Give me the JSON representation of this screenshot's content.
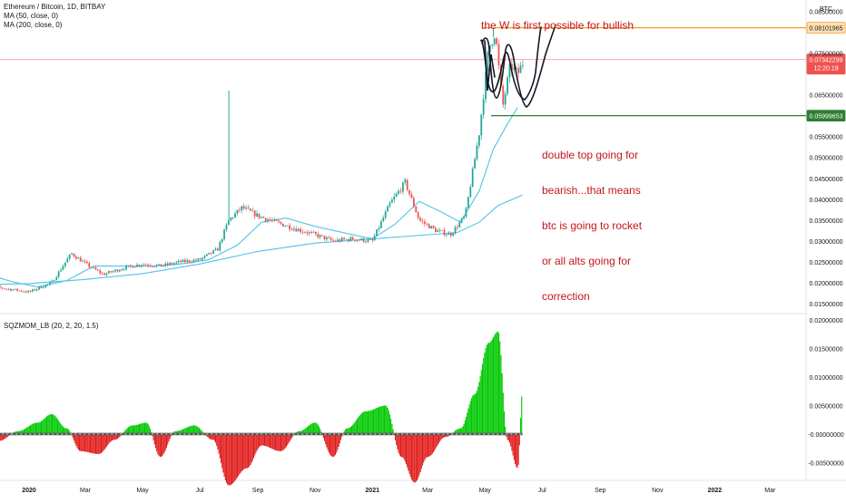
{
  "header": {
    "title": "Ethereum / Bitcoin, 1D, BITBAY",
    "indicators": [
      "MA (50, close, 0)",
      "MA (200, close, 0)"
    ],
    "currency": "BTC"
  },
  "annotations": {
    "top": "the W is first possible for bullish",
    "middle": [
      "double top going for",
      "bearish...that means",
      "btc is going to rocket",
      "or all alts going for",
      "correction"
    ]
  },
  "price_tags": {
    "resistance": "0.08101965",
    "current": "0.07342299",
    "countdown": "12:20:19",
    "support": "0.05999653"
  },
  "oscillator": {
    "title": "SQZMOM_LB (20, 2, 20, 1.5)"
  },
  "colors": {
    "up_candle": "#26a69a",
    "down_candle": "#ef5350",
    "ma50": "#4fc3e8",
    "ma200": "#4fc3e8",
    "resistance_line": "#f59d1c",
    "support_line": "#2e7d32",
    "current_line": "#f19ca0",
    "hist_pos": "#00c800",
    "hist_neg": "#e01b1b",
    "annotation": "#c4161c"
  },
  "chart_data": [
    {
      "type": "candlestick",
      "title": "Ethereum / Bitcoin, 1D, BITBAY",
      "xlabel": "",
      "ylabel": "BTC",
      "ylim": [
        0.0135,
        0.0855
      ],
      "y_ticks": [
        "0.08500000",
        "0.07500000",
        "0.06500000",
        "0.05500000",
        "0.05000000",
        "0.04500000",
        "0.04000000",
        "0.03500000",
        "0.03000000",
        "0.02500000",
        "0.02000000",
        "0.01500000"
      ],
      "y_tick_values": [
        0.085,
        0.075,
        0.065,
        0.055,
        0.05,
        0.045,
        0.04,
        0.035,
        0.03,
        0.025,
        0.02,
        0.015
      ],
      "x_ticks": [
        "2020",
        "Mar",
        "May",
        "Jul",
        "Sep",
        "Nov",
        "2021",
        "Mar",
        "May",
        "Jul",
        "Sep",
        "Nov",
        "2022",
        "Mar"
      ],
      "x_tick_dates": [
        "2020-01-01",
        "2020-03-01",
        "2020-05-01",
        "2020-07-01",
        "2020-09-01",
        "2020-11-01",
        "2021-01-01",
        "2021-03-01",
        "2021-05-01",
        "2021-07-01",
        "2021-09-01",
        "2021-11-01",
        "2022-01-01",
        "2022-03-01"
      ],
      "close_series": {
        "dates": [
          "2019-11-10",
          "2019-12-01",
          "2020-01-01",
          "2020-01-25",
          "2020-02-15",
          "2020-03-05",
          "2020-03-20",
          "2020-04-10",
          "2020-05-01",
          "2020-05-20",
          "2020-06-10",
          "2020-07-01",
          "2020-07-20",
          "2020-08-01",
          "2020-08-15",
          "2020-09-01",
          "2020-09-20",
          "2020-10-10",
          "2020-11-01",
          "2020-11-20",
          "2020-12-10",
          "2021-01-01",
          "2021-01-20",
          "2021-02-05",
          "2021-02-20",
          "2021-03-10",
          "2021-03-25",
          "2021-04-10",
          "2021-04-25",
          "2021-05-05",
          "2021-05-12",
          "2021-05-20",
          "2021-05-28",
          "2021-06-05",
          "2021-06-12"
        ],
        "values": [
          0.0205,
          0.0188,
          0.0178,
          0.02,
          0.027,
          0.024,
          0.022,
          0.0235,
          0.0245,
          0.024,
          0.025,
          0.0255,
          0.028,
          0.035,
          0.038,
          0.036,
          0.0345,
          0.033,
          0.0315,
          0.03,
          0.0305,
          0.03,
          0.039,
          0.044,
          0.035,
          0.0325,
          0.0315,
          0.036,
          0.056,
          0.076,
          0.08,
          0.062,
          0.072,
          0.07,
          0.0734
        ]
      },
      "wick_spikes": [
        {
          "date": "2020-08-01",
          "high": 0.066
        },
        {
          "date": "2021-05-10",
          "high": 0.081
        }
      ],
      "series": [
        {
          "name": "MA (50, close, 0)",
          "dates": [
            "2019-11-10",
            "2019-12-15",
            "2020-01-10",
            "2020-02-10",
            "2020-03-10",
            "2020-04-10",
            "2020-05-10",
            "2020-06-10",
            "2020-07-10",
            "2020-08-10",
            "2020-09-05",
            "2020-10-01",
            "2020-11-01",
            "2020-12-01",
            "2021-01-01",
            "2021-01-25",
            "2021-02-20",
            "2021-03-15",
            "2021-04-05",
            "2021-04-25",
            "2021-05-10",
            "2021-05-25",
            "2021-06-05"
          ],
          "values": [
            0.0225,
            0.0202,
            0.019,
            0.0205,
            0.024,
            0.024,
            0.024,
            0.0245,
            0.0255,
            0.029,
            0.0345,
            0.0355,
            0.0335,
            0.032,
            0.0305,
            0.034,
            0.0395,
            0.037,
            0.0345,
            0.042,
            0.052,
            0.058,
            0.062
          ]
        },
        {
          "name": "MA (200, close, 0)",
          "dates": [
            "2019-11-10",
            "2020-01-01",
            "2020-03-01",
            "2020-05-01",
            "2020-07-01",
            "2020-09-01",
            "2020-11-01",
            "2021-01-01",
            "2021-03-01",
            "2021-04-01",
            "2021-04-25",
            "2021-05-15",
            "2021-06-10"
          ],
          "values": [
            0.0195,
            0.0198,
            0.0208,
            0.0222,
            0.0245,
            0.0275,
            0.0295,
            0.0305,
            0.0315,
            0.032,
            0.0345,
            0.0385,
            0.041
          ]
        }
      ],
      "horizontal_lines": [
        {
          "value": 0.08101965,
          "label": "0.08101965"
        },
        {
          "value": 0.07342299,
          "label": "0.07342299"
        },
        {
          "value": 0.05999653,
          "label": "0.05999653"
        }
      ],
      "grid": false
    },
    {
      "type": "histogram",
      "title": "SQZMOM_LB (20, 2, 20, 1.5)",
      "ylim": [
        -0.0078,
        0.0205
      ],
      "y_ticks": [
        "0.02000000",
        "0.01500000",
        "0.01000000",
        "0.00500000",
        "-0.00000000",
        "-0.00500000"
      ],
      "y_tick_values": [
        0.02,
        0.015,
        0.01,
        0.005,
        0.0,
        -0.005
      ],
      "values_by_date": {
        "dates": [
          "2019-11-10",
          "2019-11-30",
          "2019-12-20",
          "2020-01-10",
          "2020-01-25",
          "2020-02-10",
          "2020-02-25",
          "2020-03-15",
          "2020-04-01",
          "2020-04-20",
          "2020-05-05",
          "2020-05-20",
          "2020-06-05",
          "2020-06-25",
          "2020-07-15",
          "2020-08-01",
          "2020-08-20",
          "2020-09-05",
          "2020-09-25",
          "2020-10-15",
          "2020-11-01",
          "2020-11-20",
          "2020-12-05",
          "2020-12-25",
          "2021-01-15",
          "2021-02-01",
          "2021-02-15",
          "2021-03-01",
          "2021-03-20",
          "2021-04-05",
          "2021-04-20",
          "2021-05-05",
          "2021-05-15",
          "2021-05-25",
          "2021-06-05",
          "2021-06-10"
        ],
        "values": [
          -0.001,
          -0.0012,
          0.0005,
          0.002,
          0.0035,
          0.001,
          -0.003,
          -0.0035,
          -0.001,
          0.0015,
          0.002,
          -0.004,
          0.0005,
          0.0015,
          -0.001,
          -0.009,
          -0.006,
          -0.002,
          -0.003,
          0.0005,
          0.002,
          -0.004,
          0.001,
          0.004,
          0.005,
          -0.004,
          -0.0085,
          -0.004,
          -0.0005,
          0.001,
          0.007,
          0.016,
          0.018,
          -0.001,
          -0.006,
          0.0075
        ]
      }
    }
  ]
}
